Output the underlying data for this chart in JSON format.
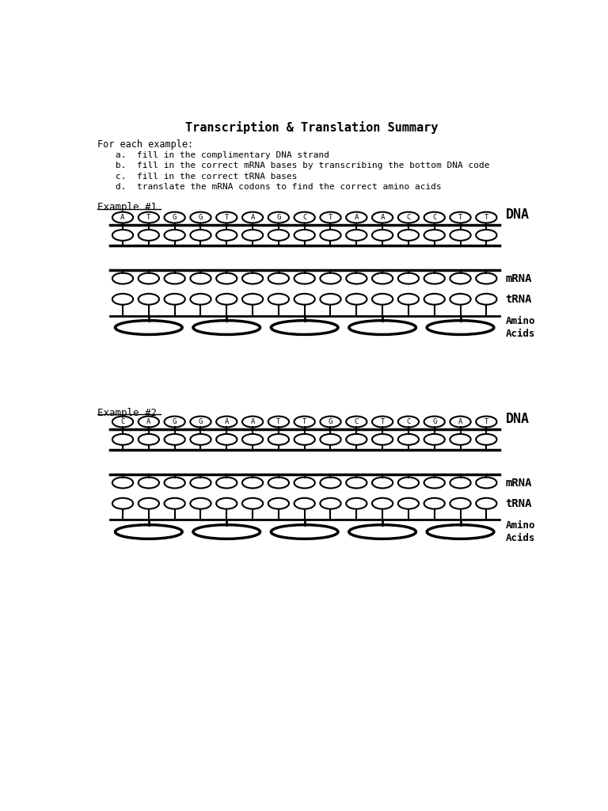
{
  "title": "Transcription & Translation Summary",
  "instructions_header": "For each example:",
  "instructions": [
    "a.  fill in the complimentary DNA strand",
    "b.  fill in the correct mRNA bases by transcribing the bottom DNA code",
    "c.  fill in the correct tRNA bases",
    "d.  translate the mRNA codons to find the correct amino acids"
  ],
  "example1_label": "Example #1",
  "example2_label": "Example #2",
  "dna1_top": [
    "A",
    "T",
    "G",
    "G",
    "T",
    "A",
    "G",
    "C",
    "T",
    "A",
    "A",
    "C",
    "C",
    "T",
    "T"
  ],
  "dna2_top": [
    "C",
    "A",
    "G",
    "G",
    "A",
    "A",
    "T",
    "T",
    "G",
    "C",
    "T",
    "C",
    "G",
    "A",
    "T"
  ],
  "num_circles": 15,
  "num_amino": 5,
  "bg_color": "#ffffff",
  "line_color": "#000000",
  "font_family": "monospace"
}
